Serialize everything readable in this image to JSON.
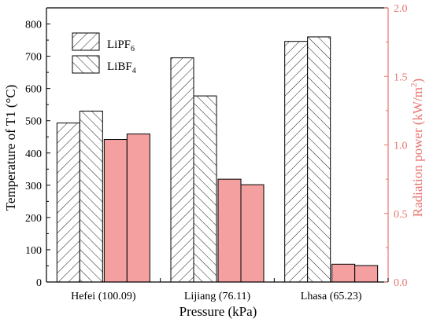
{
  "chart_data": {
    "type": "bar",
    "xlabel": "Pressure (kPa)",
    "ylabel_left": "Temperature of T1 (°C)",
    "ylabel_right": "Radiation power (kW/m²)",
    "ylabel_right_base": "Radiation power (kW/m",
    "ylabel_right_sup": "2",
    "ylabel_right_tail": ")",
    "categories": [
      "Hefei (100.09)",
      "Lijiang (76.11)",
      "Lhasa (65.23)"
    ],
    "ylim_left": [
      0,
      850
    ],
    "ylim_right": [
      0,
      2.0
    ],
    "yticks_left": [
      0,
      100,
      200,
      300,
      400,
      500,
      600,
      700,
      800
    ],
    "yticks_left_labels": [
      "0",
      "100",
      "200",
      "300",
      "400",
      "500",
      "600",
      "700",
      "800"
    ],
    "yticks_right": [
      0,
      0.5,
      1.0,
      1.5,
      2.0
    ],
    "yticks_right_labels": [
      "0.0",
      "0.5",
      "1.0",
      "1.5",
      "2.0"
    ],
    "grid": false,
    "legend_position": "top-left",
    "legend": [
      {
        "name": "LiPF6",
        "base": "LiPF",
        "sub": "6",
        "hatch": "forward"
      },
      {
        "name": "LiBF4",
        "base": "LiBF",
        "sub": "4",
        "hatch": "backward"
      }
    ],
    "series": [
      {
        "name": "LiPF6",
        "axis": "left",
        "values": [
          493,
          695,
          746
        ]
      },
      {
        "name": "LiBF4",
        "axis": "left",
        "values": [
          530,
          577,
          760
        ]
      },
      {
        "name": "LiPF6",
        "axis": "right",
        "values": [
          1.04,
          0.75,
          0.13
        ]
      },
      {
        "name": "LiBF4",
        "axis": "right",
        "values": [
          1.08,
          0.71,
          0.12
        ]
      }
    ],
    "colors": {
      "temperature_bar_fill": "#ffffff",
      "temperature_bar_stroke": "#000000",
      "radiation_bar_fill": "#f4a0a0",
      "radiation_bar_stroke": "#000000",
      "right_axis": "#e8746e"
    }
  }
}
